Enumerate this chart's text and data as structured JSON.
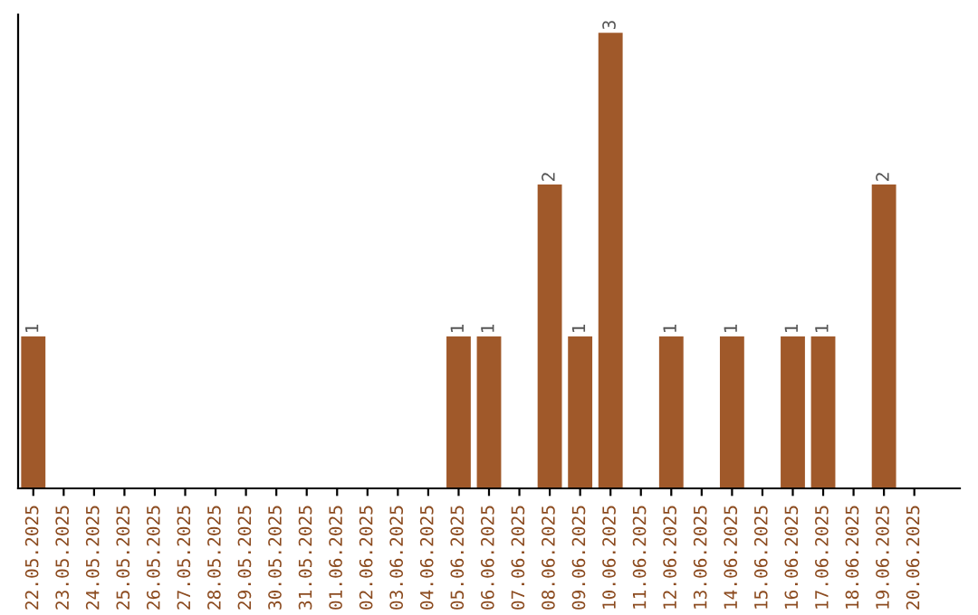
{
  "chart_data": {
    "type": "bar",
    "categories": [
      "22.05.2025",
      "23.05.2025",
      "24.05.2025",
      "25.05.2025",
      "26.05.2025",
      "27.05.2025",
      "28.05.2025",
      "29.05.2025",
      "30.05.2025",
      "31.05.2025",
      "01.06.2025",
      "02.06.2025",
      "03.06.2025",
      "04.06.2025",
      "05.06.2025",
      "06.06.2025",
      "07.06.2025",
      "08.06.2025",
      "09.06.2025",
      "10.06.2025",
      "11.06.2025",
      "12.06.2025",
      "13.06.2025",
      "14.06.2025",
      "15.06.2025",
      "16.06.2025",
      "17.06.2025",
      "18.06.2025",
      "19.06.2025",
      "20.06.2025"
    ],
    "values": [
      1,
      0,
      0,
      0,
      0,
      0,
      0,
      0,
      0,
      0,
      0,
      0,
      0,
      0,
      1,
      1,
      0,
      2,
      1,
      3,
      0,
      1,
      0,
      1,
      0,
      1,
      1,
      0,
      2,
      0
    ],
    "value_labels": [
      "1",
      null,
      null,
      null,
      null,
      null,
      null,
      null,
      null,
      null,
      null,
      null,
      null,
      null,
      "1",
      "1",
      null,
      "2",
      "1",
      "3",
      null,
      "1",
      null,
      "1",
      null,
      "1",
      "1",
      null,
      "2",
      null
    ],
    "color": "#a0592a",
    "grid": false,
    "legend": false
  }
}
